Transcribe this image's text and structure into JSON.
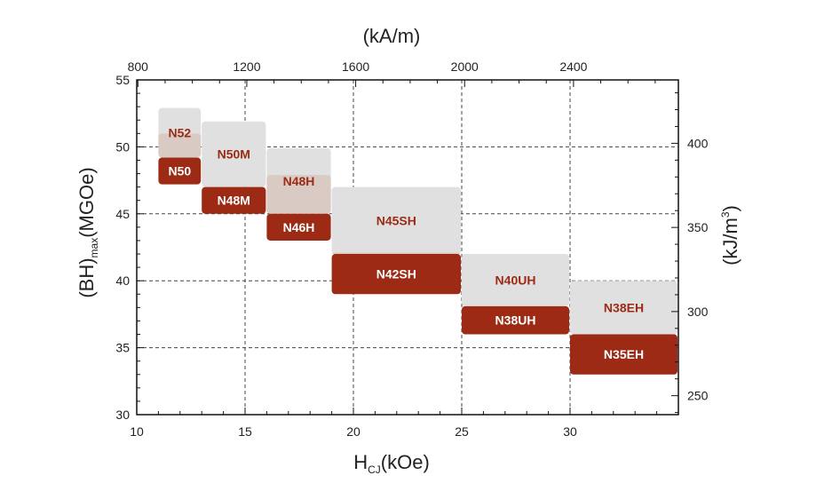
{
  "chart_data": {
    "type": "bar",
    "x_bottom": {
      "label_main": "H",
      "label_sub": "CJ",
      "label_tail": "(kOe)",
      "range": [
        10,
        35
      ],
      "ticks": [
        10,
        15,
        20,
        25,
        30
      ]
    },
    "x_top": {
      "label": "(kA/m)",
      "ticks": [
        800,
        1200,
        1600,
        2000,
        2400
      ]
    },
    "y_left": {
      "label_main": "(BH)",
      "label_sub": "max",
      "label_tail": "(MGOe)",
      "range": [
        30,
        55
      ],
      "ticks": [
        30,
        35,
        40,
        45,
        50,
        55
      ]
    },
    "y_right": {
      "label_main": "(kJ/m",
      "label_sup": "3",
      "label_tail": ")",
      "ticks": [
        250,
        300,
        350,
        400
      ]
    },
    "grid": true,
    "colors": {
      "high_grade_light": "#e0e0e0",
      "high_grade_mid": "#d9cac3",
      "low_grade": "#9c2a14",
      "high_text": "#9c2a14",
      "low_text": "#ffffff"
    },
    "groups": [
      {
        "hcj": [
          11,
          13
        ],
        "high": {
          "name": "N52",
          "bh": [
            49.2,
            52.9
          ]
        },
        "low": {
          "name": "N50",
          "bh": [
            47.2,
            51.0
          ]
        }
      },
      {
        "hcj": [
          13,
          16
        ],
        "high": {
          "name": "N50M",
          "bh": [
            47.0,
            51.9
          ]
        },
        "low": {
          "name": "N48M",
          "bh": [
            45.0,
            47.0
          ]
        }
      },
      {
        "hcj": [
          16,
          19
        ],
        "high": {
          "name": "N48H",
          "bh": [
            45.0,
            49.9
          ]
        },
        "low": {
          "name": "N46H",
          "bh": [
            43.0,
            47.9
          ]
        }
      },
      {
        "hcj": [
          19,
          25
        ],
        "high": {
          "name": "N45SH",
          "bh": [
            42.0,
            47.0
          ]
        },
        "low": {
          "name": "N42SH",
          "bh": [
            39.0,
            42.1
          ]
        }
      },
      {
        "hcj": [
          25,
          30
        ],
        "high": {
          "name": "N40UH",
          "bh": [
            38.1,
            42.0
          ]
        },
        "low": {
          "name": "N38UH",
          "bh": [
            36.0,
            38.1
          ]
        }
      },
      {
        "hcj": [
          30,
          35
        ],
        "high": {
          "name": "N38EH",
          "bh": [
            36.0,
            40.0
          ]
        },
        "low": {
          "name": "N35EH",
          "bh": [
            33.0,
            36.0
          ]
        }
      }
    ]
  }
}
